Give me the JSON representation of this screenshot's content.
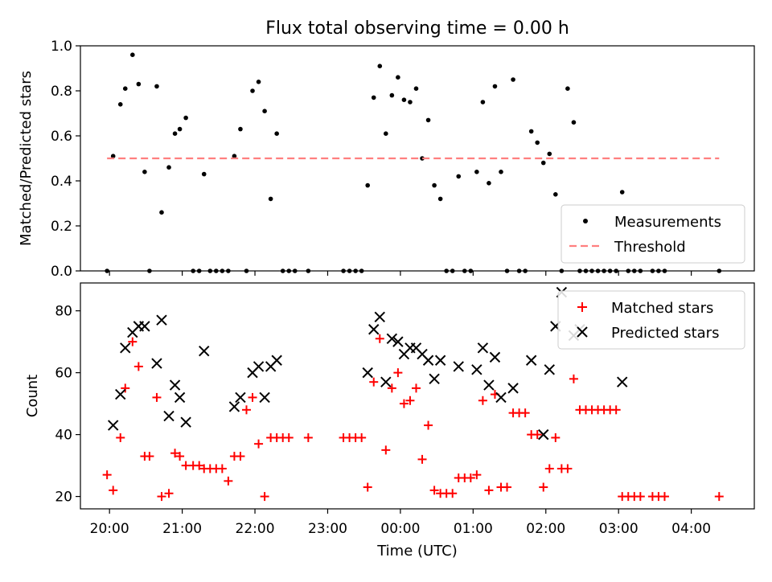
{
  "chart_data": {
    "title": "Flux total observing time = 0.00 h",
    "xlabel": "Time (UTC)",
    "x_unit": "time of day (UTC), night spanning midnight",
    "x_range": [
      "19:36",
      "04:52"
    ],
    "x_ticks": [
      "20:00",
      "21:00",
      "22:00",
      "23:00",
      "00:00",
      "01:00",
      "02:00",
      "03:00",
      "04:00"
    ],
    "panels": [
      {
        "type": "scatter",
        "ylabel": "Matched/Predicted stars",
        "ylim": [
          0,
          1.0
        ],
        "yticks": [
          "0.0",
          "0.2",
          "0.4",
          "0.6",
          "0.8",
          "1.0"
        ],
        "legend_position": "lower-right",
        "series": [
          {
            "name": "Measurements",
            "marker": "dot",
            "color": "#000000",
            "points": [
              [
                "19:58",
                0.0
              ],
              [
                "20:03",
                0.51
              ],
              [
                "20:09",
                0.74
              ],
              [
                "20:13",
                0.81
              ],
              [
                "20:19",
                0.96
              ],
              [
                "20:24",
                0.83
              ],
              [
                "20:29",
                0.44
              ],
              [
                "20:33",
                0.0
              ],
              [
                "20:39",
                0.82
              ],
              [
                "20:43",
                0.26
              ],
              [
                "20:49",
                0.46
              ],
              [
                "20:54",
                0.61
              ],
              [
                "20:58",
                0.63
              ],
              [
                "21:03",
                0.68
              ],
              [
                "21:09",
                0.0
              ],
              [
                "21:14",
                0.0
              ],
              [
                "21:18",
                0.43
              ],
              [
                "21:23",
                0.0
              ],
              [
                "21:28",
                0.0
              ],
              [
                "21:33",
                0.0
              ],
              [
                "21:38",
                0.0
              ],
              [
                "21:43",
                0.51
              ],
              [
                "21:48",
                0.63
              ],
              [
                "21:53",
                0.0
              ],
              [
                "21:58",
                0.8
              ],
              [
                "22:03",
                0.84
              ],
              [
                "22:08",
                0.71
              ],
              [
                "22:13",
                0.32
              ],
              [
                "22:18",
                0.61
              ],
              [
                "22:23",
                0.0
              ],
              [
                "22:28",
                0.0
              ],
              [
                "22:33",
                0.0
              ],
              [
                "22:44",
                0.0
              ],
              [
                "23:13",
                0.0
              ],
              [
                "23:18",
                0.0
              ],
              [
                "23:23",
                0.0
              ],
              [
                "23:28",
                0.0
              ],
              [
                "23:33",
                0.38
              ],
              [
                "23:38",
                0.77
              ],
              [
                "23:43",
                0.91
              ],
              [
                "23:48",
                0.61
              ],
              [
                "23:53",
                0.78
              ],
              [
                "23:58",
                0.86
              ],
              [
                "00:03",
                0.76
              ],
              [
                "00:08",
                0.75
              ],
              [
                "00:13",
                0.81
              ],
              [
                "00:18",
                0.5
              ],
              [
                "00:23",
                0.67
              ],
              [
                "00:28",
                0.38
              ],
              [
                "00:33",
                0.32
              ],
              [
                "00:38",
                0.0
              ],
              [
                "00:43",
                0.0
              ],
              [
                "00:48",
                0.42
              ],
              [
                "00:53",
                0.0
              ],
              [
                "00:58",
                0.0
              ],
              [
                "01:03",
                0.44
              ],
              [
                "01:08",
                0.75
              ],
              [
                "01:13",
                0.39
              ],
              [
                "01:18",
                0.82
              ],
              [
                "01:23",
                0.44
              ],
              [
                "01:28",
                0.0
              ],
              [
                "01:33",
                0.85
              ],
              [
                "01:38",
                0.0
              ],
              [
                "01:43",
                0.0
              ],
              [
                "01:48",
                0.62
              ],
              [
                "01:53",
                0.57
              ],
              [
                "01:58",
                0.48
              ],
              [
                "02:03",
                0.52
              ],
              [
                "02:08",
                0.34
              ],
              [
                "02:13",
                0.0
              ],
              [
                "02:18",
                0.81
              ],
              [
                "02:23",
                0.66
              ],
              [
                "02:28",
                0.0
              ],
              [
                "02:33",
                0.0
              ],
              [
                "02:38",
                0.0
              ],
              [
                "02:43",
                0.0
              ],
              [
                "02:48",
                0.0
              ],
              [
                "02:53",
                0.0
              ],
              [
                "02:58",
                0.0
              ],
              [
                "03:03",
                0.35
              ],
              [
                "03:08",
                0.0
              ],
              [
                "03:13",
                0.0
              ],
              [
                "03:18",
                0.0
              ],
              [
                "03:28",
                0.0
              ],
              [
                "03:33",
                0.0
              ],
              [
                "03:38",
                0.0
              ],
              [
                "04:23",
                0.0
              ]
            ]
          },
          {
            "name": "Threshold",
            "marker": "dashed-line",
            "color": "#ff7f7f",
            "points": [
              [
                "19:58",
                0.5
              ],
              [
                "04:23",
                0.5
              ]
            ]
          }
        ]
      },
      {
        "type": "scatter",
        "ylabel": "Count",
        "ylim": [
          16,
          89
        ],
        "yticks": [
          "20",
          "40",
          "60",
          "80"
        ],
        "legend_position": "upper-right",
        "series": [
          {
            "name": "Matched stars",
            "marker": "plus",
            "color": "#ff0000",
            "points": [
              [
                "19:58",
                27
              ],
              [
                "20:03",
                22
              ],
              [
                "20:09",
                39
              ],
              [
                "20:13",
                55
              ],
              [
                "20:19",
                70
              ],
              [
                "20:24",
                62
              ],
              [
                "20:29",
                33
              ],
              [
                "20:33",
                33
              ],
              [
                "20:39",
                52
              ],
              [
                "20:43",
                20
              ],
              [
                "20:49",
                21
              ],
              [
                "20:54",
                34
              ],
              [
                "20:58",
                33
              ],
              [
                "21:03",
                30
              ],
              [
                "21:09",
                30
              ],
              [
                "21:14",
                30
              ],
              [
                "21:18",
                29
              ],
              [
                "21:23",
                29
              ],
              [
                "21:28",
                29
              ],
              [
                "21:33",
                29
              ],
              [
                "21:38",
                25
              ],
              [
                "21:43",
                33
              ],
              [
                "21:48",
                33
              ],
              [
                "21:53",
                48
              ],
              [
                "21:58",
                52
              ],
              [
                "22:03",
                37
              ],
              [
                "22:08",
                20
              ],
              [
                "22:13",
                39
              ],
              [
                "22:18",
                39
              ],
              [
                "22:23",
                39
              ],
              [
                "22:28",
                39
              ],
              [
                "22:44",
                39
              ],
              [
                "23:13",
                39
              ],
              [
                "23:18",
                39
              ],
              [
                "23:23",
                39
              ],
              [
                "23:28",
                39
              ],
              [
                "23:33",
                23
              ],
              [
                "23:38",
                57
              ],
              [
                "23:43",
                71
              ],
              [
                "23:48",
                35
              ],
              [
                "23:53",
                55
              ],
              [
                "23:58",
                60
              ],
              [
                "00:03",
                50
              ],
              [
                "00:08",
                51
              ],
              [
                "00:13",
                55
              ],
              [
                "00:18",
                32
              ],
              [
                "00:23",
                43
              ],
              [
                "00:28",
                22
              ],
              [
                "00:33",
                21
              ],
              [
                "00:38",
                21
              ],
              [
                "00:43",
                21
              ],
              [
                "00:48",
                26
              ],
              [
                "00:53",
                26
              ],
              [
                "00:58",
                26
              ],
              [
                "01:03",
                27
              ],
              [
                "01:08",
                51
              ],
              [
                "01:13",
                22
              ],
              [
                "01:18",
                53
              ],
              [
                "01:23",
                23
              ],
              [
                "01:28",
                23
              ],
              [
                "01:33",
                47
              ],
              [
                "01:38",
                47
              ],
              [
                "01:43",
                47
              ],
              [
                "01:48",
                40
              ],
              [
                "01:53",
                40
              ],
              [
                "01:58",
                23
              ],
              [
                "02:03",
                29
              ],
              [
                "02:08",
                39
              ],
              [
                "02:13",
                29
              ],
              [
                "02:18",
                29
              ],
              [
                "02:23",
                58
              ],
              [
                "02:28",
                48
              ],
              [
                "02:33",
                48
              ],
              [
                "02:38",
                48
              ],
              [
                "02:43",
                48
              ],
              [
                "02:48",
                48
              ],
              [
                "02:53",
                48
              ],
              [
                "02:58",
                48
              ],
              [
                "03:03",
                20
              ],
              [
                "03:08",
                20
              ],
              [
                "03:13",
                20
              ],
              [
                "03:18",
                20
              ],
              [
                "03:28",
                20
              ],
              [
                "03:33",
                20
              ],
              [
                "03:38",
                20
              ],
              [
                "04:23",
                20
              ]
            ]
          },
          {
            "name": "Predicted stars",
            "marker": "x",
            "color": "#000000",
            "points": [
              [
                "20:03",
                43
              ],
              [
                "20:09",
                53
              ],
              [
                "20:13",
                68
              ],
              [
                "20:19",
                73
              ],
              [
                "20:24",
                75
              ],
              [
                "20:29",
                75
              ],
              [
                "20:39",
                63
              ],
              [
                "20:43",
                77
              ],
              [
                "20:49",
                46
              ],
              [
                "20:54",
                56
              ],
              [
                "20:58",
                52
              ],
              [
                "21:03",
                44
              ],
              [
                "21:18",
                67
              ],
              [
                "21:43",
                49
              ],
              [
                "21:48",
                52
              ],
              [
                "21:58",
                60
              ],
              [
                "22:03",
                62
              ],
              [
                "22:08",
                52
              ],
              [
                "22:13",
                62
              ],
              [
                "22:18",
                64
              ],
              [
                "23:33",
                60
              ],
              [
                "23:38",
                74
              ],
              [
                "23:43",
                78
              ],
              [
                "23:48",
                57
              ],
              [
                "23:53",
                71
              ],
              [
                "23:58",
                70
              ],
              [
                "00:03",
                66
              ],
              [
                "00:08",
                68
              ],
              [
                "00:13",
                68
              ],
              [
                "00:18",
                66
              ],
              [
                "00:23",
                64
              ],
              [
                "00:28",
                58
              ],
              [
                "00:33",
                64
              ],
              [
                "00:48",
                62
              ],
              [
                "01:03",
                61
              ],
              [
                "01:08",
                68
              ],
              [
                "01:13",
                56
              ],
              [
                "01:18",
                65
              ],
              [
                "01:23",
                52
              ],
              [
                "01:33",
                55
              ],
              [
                "01:48",
                64
              ],
              [
                "01:58",
                40
              ],
              [
                "02:03",
                61
              ],
              [
                "02:08",
                75
              ],
              [
                "02:13",
                86
              ],
              [
                "02:23",
                72
              ],
              [
                "02:28",
                74
              ],
              [
                "03:03",
                57
              ]
            ]
          }
        ]
      }
    ]
  }
}
